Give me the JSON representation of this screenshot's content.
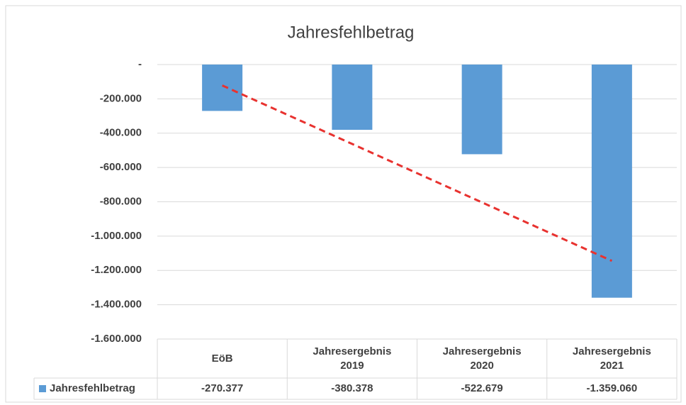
{
  "chart_data": {
    "type": "bar",
    "title": "Jahresfehlbetrag",
    "categories": [
      "EöB",
      "Jahresergebnis 2019",
      "Jahresergebnis 2020",
      "Jahresergebnis 2021"
    ],
    "series": [
      {
        "name": "Jahresfehlbetrag",
        "color": "#5b9bd5",
        "values": [
          -270377,
          -380378,
          -522679,
          -1359060
        ],
        "value_labels": [
          "-270.377",
          "-380.378",
          "-522.679",
          "-1.359.060"
        ]
      }
    ],
    "ylim": [
      -1600000,
      0
    ],
    "yticks": [
      {
        "value": 0,
        "label": "-"
      },
      {
        "value": -200000,
        "label": "-200.000"
      },
      {
        "value": -400000,
        "label": "-400.000"
      },
      {
        "value": -600000,
        "label": "-600.000"
      },
      {
        "value": -800000,
        "label": "-800.000"
      },
      {
        "value": -1000000,
        "label": "-1.000.000"
      },
      {
        "value": -1200000,
        "label": "-1.200.000"
      },
      {
        "value": -1400000,
        "label": "-1.400.000"
      },
      {
        "value": -1600000,
        "label": "-1.600.000"
      }
    ],
    "grid": true,
    "trendline": {
      "type": "linear",
      "color": "#e8322f"
    }
  }
}
